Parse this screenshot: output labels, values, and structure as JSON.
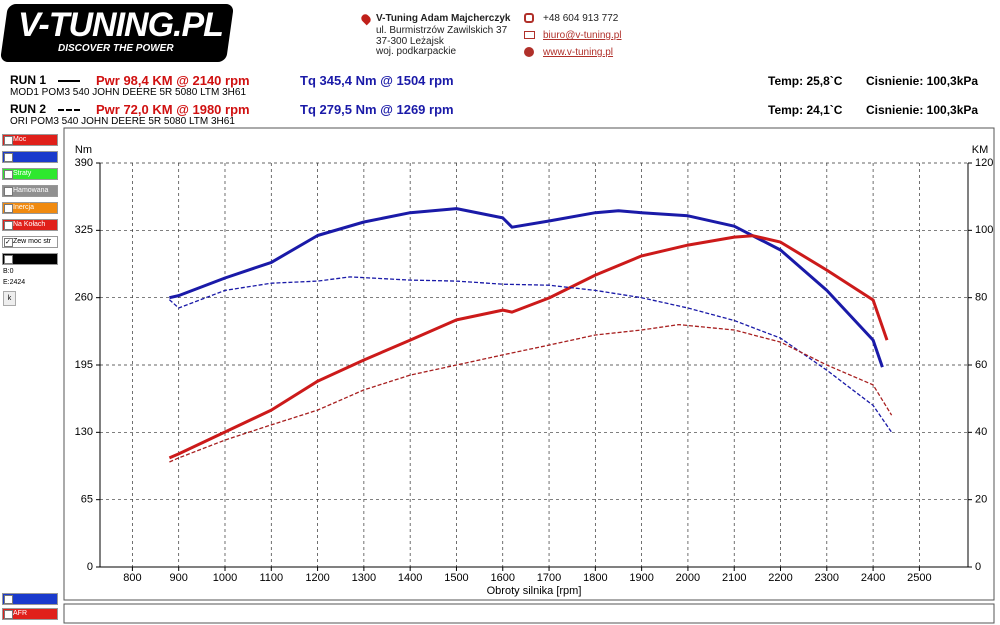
{
  "header": {
    "logo_title": "V-TUNING.PL",
    "logo_tagline": "DISCOVER THE POWER",
    "company": "V-Tuning Adam Majcherczyk",
    "address1": "ul. Burmistrzów Zawilskich 37",
    "address2": "37-300 Leżajsk",
    "region": "woj. podkarpackie",
    "phone": "+48 604 913 772",
    "email": "biuro@v-tuning.pl",
    "website": "www.v-tuning.pl"
  },
  "runs": [
    {
      "label": "RUN 1",
      "power": "Pwr  98,4 KM @ 2140 rpm",
      "torque": "Tq 345,4 Nm @ 1504 rpm",
      "temp": "Temp: 25,8`C",
      "pressure": "Cisnienie: 100,3kPa",
      "description": "MOD1 POM3 540 JOHN DEERE 5R 5080 LTM 3H61",
      "dashed": false
    },
    {
      "label": "RUN 2",
      "power": "Pwr  72,0 KM @ 1980 rpm",
      "torque": "Tq 279,5 Nm @ 1269 rpm",
      "temp": "Temp: 24,1`C",
      "pressure": "Cisnienie: 100,3kPa",
      "description": "ORI POM3 540 JOHN DEERE 5R 5080 LTM 3H61",
      "dashed": true
    }
  ],
  "sidebar": {
    "items": [
      {
        "label": "Moc",
        "color": "#e0201a",
        "checked": true
      },
      {
        "label": "",
        "color": "#1a3acc",
        "checked": true
      },
      {
        "label": "Straty",
        "color": "#2ee82e",
        "checked": false
      },
      {
        "label": "Hamowana",
        "color": "#909090",
        "checked": false
      },
      {
        "label": "Inercja",
        "color": "#f08a10",
        "checked": false
      },
      {
        "label": "Na Kołach",
        "color": "#e0201a",
        "checked": false
      },
      {
        "label": "Zew moc str",
        "color": "#ffffff",
        "checked": true
      },
      {
        "label": "",
        "color": "#000000",
        "checked": false
      }
    ],
    "b": "B:0",
    "e": "E:2424",
    "button": "k",
    "bottom": [
      {
        "label": "",
        "color": "#1a3acc"
      },
      {
        "label": "AFR",
        "color": "#e0201a"
      }
    ]
  },
  "chart_data": {
    "type": "line",
    "xlabel": "Obroty silnika [rpm]",
    "ylabel": "Nm",
    "y2label": "KM",
    "grid": true,
    "xlim": [
      730,
      2605
    ],
    "xticks": [
      800,
      900,
      1000,
      1100,
      1200,
      1300,
      1400,
      1500,
      1600,
      1700,
      1800,
      1900,
      2000,
      2100,
      2200,
      2300,
      2400,
      2500
    ],
    "ylim": [
      0,
      390
    ],
    "yticks": [
      0,
      65,
      130,
      195,
      260,
      325,
      390
    ],
    "y2lim": [
      0,
      120
    ],
    "y2ticks": [
      0,
      20,
      40,
      60,
      80,
      100,
      120
    ],
    "series": [
      {
        "color": "#1a1aa8",
        "dashed": false,
        "axis": "y",
        "x": [
          880,
          900,
          1000,
          1100,
          1200,
          1300,
          1400,
          1500,
          1600,
          1620,
          1700,
          1800,
          1850,
          1900,
          2000,
          2100,
          2200,
          2300,
          2400,
          2420
        ],
        "values": [
          260,
          262,
          279,
          294,
          320,
          333,
          342,
          346,
          337,
          328,
          334,
          342,
          344,
          342,
          339,
          329,
          306,
          267,
          219,
          193
        ]
      },
      {
        "color": "#cc1a1a",
        "dashed": false,
        "axis": "y2",
        "x": [
          880,
          900,
          1000,
          1100,
          1200,
          1300,
          1400,
          1500,
          1600,
          1620,
          1700,
          1800,
          1900,
          2000,
          2100,
          2140,
          2200,
          2300,
          2400,
          2430
        ],
        "values": [
          32.4,
          33.6,
          40.1,
          46.6,
          55.2,
          61.5,
          67.4,
          73.4,
          76.3,
          75.7,
          79.9,
          86.7,
          92.4,
          95.6,
          98.0,
          98.4,
          96.5,
          88.2,
          79.3,
          67.4
        ]
      },
      {
        "color": "#1a1aa8",
        "dashed": true,
        "axis": "y",
        "x": [
          880,
          900,
          1000,
          1100,
          1200,
          1270,
          1400,
          1500,
          1600,
          1700,
          1800,
          1900,
          2000,
          2100,
          2200,
          2300,
          2400,
          2440
        ],
        "values": [
          258,
          250,
          267,
          274,
          276,
          280,
          277,
          276,
          273,
          272,
          267,
          260,
          250,
          238,
          221,
          190,
          156,
          130
        ]
      },
      {
        "color": "#a82020",
        "dashed": true,
        "axis": "y2",
        "x": [
          880,
          900,
          1000,
          1100,
          1200,
          1300,
          1400,
          1500,
          1600,
          1700,
          1800,
          1900,
          1980,
          2100,
          2200,
          2300,
          2400,
          2440
        ],
        "values": [
          31.2,
          32.4,
          37.7,
          42.2,
          46.6,
          52.6,
          57.0,
          60.0,
          63.0,
          65.9,
          68.9,
          70.4,
          72.0,
          70.4,
          66.8,
          60.0,
          54.1,
          45.1
        ]
      }
    ]
  }
}
